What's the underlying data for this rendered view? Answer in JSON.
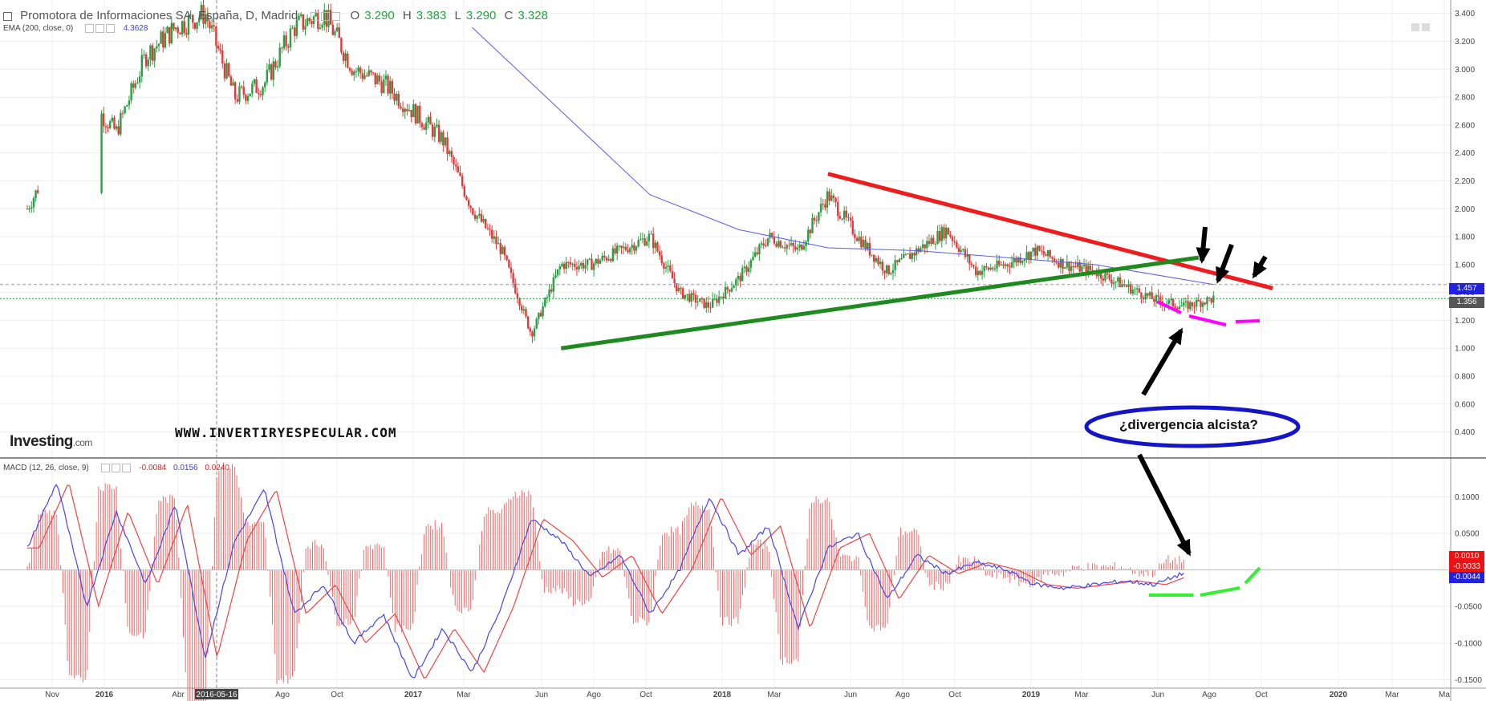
{
  "header": {
    "symbol_title": "Promotora de Informaciones SA, España, D, Madrid",
    "open_label": "O",
    "open_value": "3.290",
    "high_label": "H",
    "high_value": "3.383",
    "low_label": "L",
    "low_value": "3.290",
    "close_label": "C",
    "close_value": "3.328",
    "ema_label": "EMA (200, close, 0)",
    "ema_value": "4.3628",
    "macd_label": "MACD (12, 26, close, 9)",
    "macd_value_1": "-0.0084",
    "macd_value_2": "0.0156",
    "macd_value_3": "0.0240"
  },
  "watermark": {
    "brand": "Investing",
    "brand_suffix": ".com",
    "website": "WWW.INVERTIRYESPECULAR.COM"
  },
  "annotation": {
    "text": "¿divergencia alcista?"
  },
  "price_tags": {
    "ema": "1.457",
    "last": "1.356"
  },
  "macd_tags": {
    "top": "0.0010",
    "mid": "-0.0033",
    "low": "-0.0044"
  },
  "crosshair_date": "2016-05-16",
  "colors": {
    "up_candle": "#26a041",
    "down_candle": "#e03b3b",
    "ema": "#5b5bea",
    "resistance": "#ee1c1c",
    "support": "#1f8a1f",
    "magenta": "#ff00ff",
    "macd_line": "#4444ee",
    "signal_line": "#ee4444",
    "green_bright": "#33ee33",
    "oval": "#1414c8"
  },
  "chart_data": [
    {
      "type": "candlestick",
      "title": "Promotora de Informaciones SA, España, D, Madrid",
      "ylim": [
        0.3,
        3.45
      ],
      "yticks": [
        "3.400",
        "3.200",
        "3.000",
        "2.800",
        "2.600",
        "2.400",
        "2.200",
        "2.000",
        "1.800",
        "1.600",
        "1.400",
        "1.200",
        "1.000",
        "0.800",
        "0.600",
        "0.400"
      ],
      "x_ticks": [
        "Nov",
        "2016",
        "Abr",
        "2016-05-16",
        "Ago",
        "Oct",
        "2017",
        "Mar",
        "Jun",
        "Ago",
        "Oct",
        "2018",
        "Mar",
        "Jun",
        "Ago",
        "Oct",
        "2019",
        "Mar",
        "Jun",
        "Ago",
        "Oct",
        "2020",
        "Mar",
        "Ma"
      ],
      "close_path": [
        {
          "month": 0,
          "value": 2.0
        },
        {
          "month": 2,
          "value": 2.8
        },
        {
          "month": 3,
          "value": 2.55
        },
        {
          "month": 4,
          "value": 3.1
        },
        {
          "month": 5,
          "value": 3.3
        },
        {
          "month": 6,
          "value": 3.4
        },
        {
          "month": 7,
          "value": 2.8
        },
        {
          "month": 8,
          "value": 2.9
        },
        {
          "month": 9,
          "value": 3.3
        },
        {
          "month": 10,
          "value": 3.4
        },
        {
          "month": 11,
          "value": 3.0
        },
        {
          "month": 12,
          "value": 2.9
        },
        {
          "month": 13,
          "value": 2.7
        },
        {
          "month": 14,
          "value": 2.5
        },
        {
          "month": 15,
          "value": 2.0
        },
        {
          "month": 16,
          "value": 1.7
        },
        {
          "month": 17,
          "value": 1.1
        },
        {
          "month": 18,
          "value": 1.6
        },
        {
          "month": 19,
          "value": 1.6
        },
        {
          "month": 20,
          "value": 1.7
        },
        {
          "month": 21,
          "value": 1.8
        },
        {
          "month": 22,
          "value": 1.4
        },
        {
          "month": 23,
          "value": 1.3
        },
        {
          "month": 24,
          "value": 1.5
        },
        {
          "month": 25,
          "value": 1.8
        },
        {
          "month": 26,
          "value": 1.7
        },
        {
          "month": 27,
          "value": 2.1
        },
        {
          "month": 28,
          "value": 1.8
        },
        {
          "month": 29,
          "value": 1.55
        },
        {
          "month": 30,
          "value": 1.7
        },
        {
          "month": 31,
          "value": 1.85
        },
        {
          "month": 32,
          "value": 1.55
        },
        {
          "month": 33,
          "value": 1.6
        },
        {
          "month": 34,
          "value": 1.7
        },
        {
          "month": 35,
          "value": 1.6
        },
        {
          "month": 36,
          "value": 1.55
        },
        {
          "month": 37,
          "value": 1.45
        },
        {
          "month": 38,
          "value": 1.35
        },
        {
          "month": 39,
          "value": 1.3
        },
        {
          "month": 40,
          "value": 1.356
        }
      ],
      "ema200_path": [
        {
          "month": 15,
          "value": 3.3
        },
        {
          "month": 18,
          "value": 2.7
        },
        {
          "month": 21,
          "value": 2.1
        },
        {
          "month": 24,
          "value": 1.85
        },
        {
          "month": 27,
          "value": 1.72
        },
        {
          "month": 30,
          "value": 1.7
        },
        {
          "month": 33,
          "value": 1.65
        },
        {
          "month": 36,
          "value": 1.6
        },
        {
          "month": 40,
          "value": 1.457
        }
      ],
      "resistance_line": [
        {
          "month": 27,
          "value": 2.25
        },
        {
          "month": 42,
          "value": 1.43
        }
      ],
      "support_line": [
        {
          "month": 18,
          "value": 1.0
        },
        {
          "month": 39.5,
          "value": 1.65
        }
      ],
      "last_price": 1.356,
      "ema_value": 1.457
    },
    {
      "type": "line",
      "title": "MACD (12, 26, close, 9)",
      "ylim": [
        -0.155,
        0.13
      ],
      "yticks": [
        "0.1000",
        "0.0500",
        "-0.0500",
        "-0.1000",
        "-0.1500"
      ],
      "series": [
        {
          "name": "macd",
          "points": [
            {
              "month": 0,
              "value": 0.03
            },
            {
              "month": 1,
              "value": 0.12
            },
            {
              "month": 2,
              "value": -0.05
            },
            {
              "month": 3,
              "value": 0.08
            },
            {
              "month": 4,
              "value": -0.02
            },
            {
              "month": 5,
              "value": 0.09
            },
            {
              "month": 6,
              "value": -0.12
            },
            {
              "month": 7,
              "value": 0.04
            },
            {
              "month": 8,
              "value": 0.11
            },
            {
              "month": 9,
              "value": -0.06
            },
            {
              "month": 10,
              "value": -0.02
            },
            {
              "month": 11,
              "value": -0.1
            },
            {
              "month": 12,
              "value": -0.06
            },
            {
              "month": 13,
              "value": -0.15
            },
            {
              "month": 14,
              "value": -0.08
            },
            {
              "month": 15,
              "value": -0.14
            },
            {
              "month": 16,
              "value": -0.05
            },
            {
              "month": 17,
              "value": 0.07
            },
            {
              "month": 18,
              "value": 0.04
            },
            {
              "month": 19,
              "value": -0.01
            },
            {
              "month": 20,
              "value": 0.02
            },
            {
              "month": 21,
              "value": -0.06
            },
            {
              "month": 22,
              "value": 0.0
            },
            {
              "month": 23,
              "value": 0.1
            },
            {
              "month": 24,
              "value": 0.02
            },
            {
              "month": 25,
              "value": 0.06
            },
            {
              "month": 26,
              "value": -0.08
            },
            {
              "month": 27,
              "value": 0.03
            },
            {
              "month": 28,
              "value": 0.05
            },
            {
              "month": 29,
              "value": -0.04
            },
            {
              "month": 30,
              "value": 0.02
            },
            {
              "month": 31,
              "value": -0.005
            },
            {
              "month": 32,
              "value": 0.01
            },
            {
              "month": 33,
              "value": 0.0
            },
            {
              "month": 34,
              "value": -0.02
            },
            {
              "month": 35,
              "value": -0.025
            },
            {
              "month": 36,
              "value": -0.02
            },
            {
              "month": 37,
              "value": -0.015
            },
            {
              "month": 38,
              "value": -0.02
            },
            {
              "month": 39,
              "value": -0.0044
            }
          ]
        },
        {
          "name": "signal",
          "lag_months": 0.4
        },
        {
          "name": "histogram",
          "derived": "macd minus signal"
        }
      ]
    }
  ]
}
